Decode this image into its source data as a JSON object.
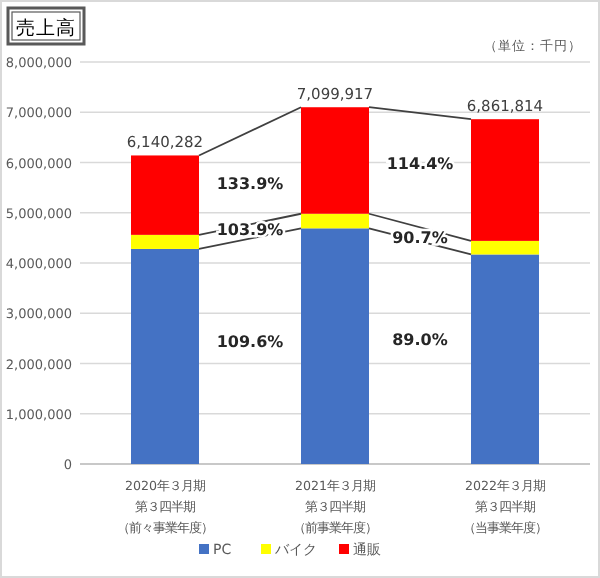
{
  "chart_data": {
    "type": "bar",
    "title": "売上高",
    "stacked": true,
    "categories": [
      "2020年３月期第３四半期（前々事業年度）",
      "2021年３月期第３四半期（前事業年度）",
      "2022年３月期第３四半期（当事業年度）"
    ],
    "series": [
      {
        "name": "PC",
        "color": "#4472c4",
        "values": [
          4280000,
          4690000,
          4170000
        ]
      },
      {
        "name": "バイク",
        "color": "#ffff00",
        "values": [
          280000,
          290000,
          270000
        ]
      },
      {
        "name": "通販",
        "color": "#ff0000",
        "values": [
          1580282,
          2119917,
          2421814
        ]
      }
    ],
    "totals": [
      "6,140,282",
      "7,099,917",
      "6,861,814"
    ],
    "ylim": [
      0,
      8000000
    ],
    "yticks": [
      0,
      {
        "value": 1000000,
        "label": "1,000,000"
      },
      {
        "value": 2000000,
        "label": "2,000,000"
      },
      {
        "value": 3000000,
        "label": "3,000,000"
      },
      {
        "value": 4000000,
        "label": "4,000,000"
      },
      {
        "value": 5000000,
        "label": "5,000,000"
      },
      {
        "value": 6000000,
        "label": "6,000,000"
      },
      {
        "value": 7000000,
        "label": "7,000,000"
      },
      {
        "value": 8000000,
        "label": "8,000,000"
      }
    ],
    "grid": "y",
    "legend": "bottom",
    "annotations": [
      "（単位：千円）",
      "133.9%",
      "103.9%",
      "109.6%",
      "114.4%",
      "90.7%",
      "89.0%"
    ]
  }
}
